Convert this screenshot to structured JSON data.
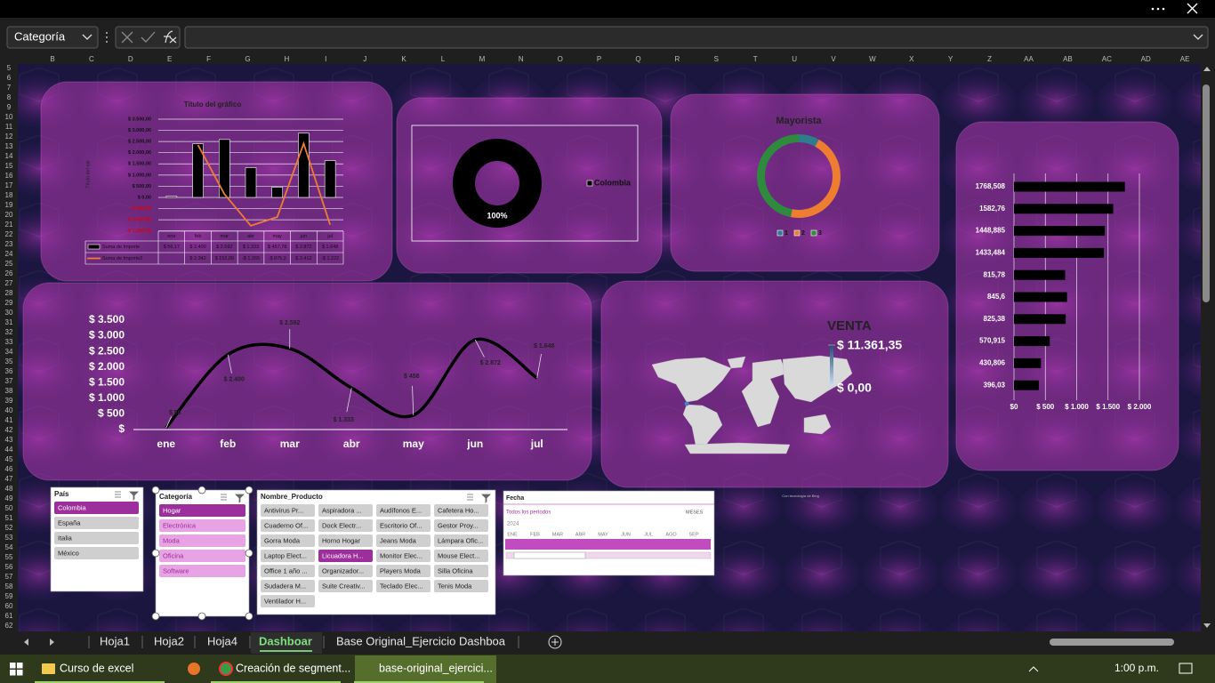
{
  "name_box": "Categoría",
  "columns": [
    "B",
    "C",
    "D",
    "E",
    "F",
    "G",
    "H",
    "I",
    "J",
    "K",
    "L",
    "M",
    "N",
    "O",
    "P",
    "Q",
    "R",
    "S",
    "T",
    "U",
    "V",
    "W",
    "X",
    "Y",
    "Z",
    "AA",
    "AB",
    "AC",
    "AD",
    "AE"
  ],
  "rows": [
    5,
    6,
    7,
    8,
    9,
    10,
    11,
    12,
    13,
    14,
    15,
    16,
    17,
    18,
    19,
    20,
    21,
    22,
    23,
    24,
    25,
    26,
    27,
    28,
    29,
    30,
    31,
    32,
    33,
    34,
    35,
    36,
    37,
    38,
    39,
    40,
    41,
    42,
    43,
    44,
    45,
    46,
    47,
    48,
    49,
    50,
    51,
    52,
    53,
    54,
    55,
    56,
    57,
    58,
    59,
    60,
    61,
    62
  ],
  "chart_data": [
    {
      "type": "combo",
      "title": "Título del gráfico",
      "y_label": "Título del eje",
      "categories": [
        "ene",
        "feb",
        "mar",
        "abr",
        "may",
        "jun",
        "jul"
      ],
      "series": [
        {
          "name": "Suma de Importe",
          "type": "bar",
          "color": "#000000",
          "values": [
            56.17,
            2400,
            2592,
            1333,
            457.78,
            2872,
            1648
          ],
          "value_labels": [
            "$ 56,17",
            "$ 2.400",
            "$ 2.592",
            "$ 1.333",
            "$ 457,78",
            "$ 2.872",
            "$ 1.648"
          ]
        },
        {
          "name": "Suma de Importe2",
          "type": "line",
          "color": "#ed7d31",
          "values": [
            null,
            2342,
            152.09,
            -1265,
            -875.2,
            2412,
            -1222
          ],
          "value_labels": [
            null,
            "$ 2.342",
            "$ 152,09",
            "-$ 1.265",
            "-$ 875,2",
            "$ 2.412",
            "-$ 1.222"
          ]
        }
      ],
      "ylim": [
        -1500,
        3500
      ],
      "yticks": [
        {
          "value": -1500,
          "label": "-$ 1.500,00"
        },
        {
          "value": -1000,
          "label": "-$ 1.000,00"
        },
        {
          "value": -500,
          "label": "-$ 500,00"
        },
        {
          "value": 0,
          "label": "$ 0,00"
        },
        {
          "value": 500,
          "label": "$ 500,00"
        },
        {
          "value": 1000,
          "label": "$ 1.000,00"
        },
        {
          "value": 1500,
          "label": "$ 1.500,00"
        },
        {
          "value": 2000,
          "label": "$ 2.000,00"
        },
        {
          "value": 2500,
          "label": "$ 2.500,00"
        },
        {
          "value": 3000,
          "label": "$ 3.000,00"
        },
        {
          "value": 3500,
          "label": "$ 3.500,00"
        }
      ],
      "negative_tick_color": "#e00000",
      "grid": true
    },
    {
      "type": "donut",
      "categories": [
        "Colombia"
      ],
      "values": [
        100
      ],
      "value_labels": [
        "100%"
      ],
      "colors": [
        "#000000"
      ]
    },
    {
      "type": "donut",
      "title": "Mayorista",
      "categories": [
        "1",
        "2",
        "3"
      ],
      "values": [
        8,
        45,
        47
      ],
      "colors": [
        "#2e7d8c",
        "#ed7d31",
        "#2e8b3e"
      ]
    },
    {
      "type": "line",
      "categories": [
        "ene",
        "feb",
        "mar",
        "abr",
        "may",
        "jun",
        "jul"
      ],
      "values": [
        56.17,
        2400,
        2592,
        1333,
        457.78,
        2872,
        1648
      ],
      "value_labels": [
        "$ 56",
        "$ 2.400",
        "$ 2.592",
        "$ 1.333",
        "$ 458",
        "$ 2.872",
        "$ 1.648"
      ],
      "ylim": [
        0,
        3500
      ],
      "yticks": [
        {
          "value": 0,
          "label": "$"
        },
        {
          "value": 500,
          "label": "$ 500"
        },
        {
          "value": 1000,
          "label": "$ 1.000"
        },
        {
          "value": 1500,
          "label": "$ 1.500"
        },
        {
          "value": 2000,
          "label": "$ 2.000"
        },
        {
          "value": 2500,
          "label": "$ 2.500"
        },
        {
          "value": 3000,
          "label": "$ 3.000"
        },
        {
          "value": 3500,
          "label": "$ 3.500"
        }
      ],
      "color": "#000000",
      "smooth": true
    },
    {
      "type": "map",
      "title": "VENTA",
      "legend_max": {
        "value": 11361.35,
        "label": "$ 11.361,35"
      },
      "legend_min": {
        "value": 0,
        "label": "$ 0,00"
      },
      "credit": "Con tecnología de Bing"
    },
    {
      "type": "hbar",
      "categories": [
        "1768,508",
        "1582,76",
        "1448,885",
        "1433,484",
        "815,78",
        "845,6",
        "825,38",
        "570,915",
        "430,806",
        "396,03"
      ],
      "values": [
        1768.508,
        1582.76,
        1448.885,
        1433.484,
        815.78,
        845.6,
        825.38,
        570.915,
        430.806,
        396.03
      ],
      "xlim": [
        0,
        2000
      ],
      "xticks": [
        {
          "value": 0,
          "label": "$0"
        },
        {
          "value": 500,
          "label": "$ 500"
        },
        {
          "value": 1000,
          "label": "$ 1.000"
        },
        {
          "value": 1500,
          "label": "$ 1.500"
        },
        {
          "value": 2000,
          "label": "$ 2.000"
        }
      ],
      "color": "#000000",
      "grid": true
    }
  ],
  "slicers": [
    {
      "title": "País",
      "items": [
        "Colombia",
        "España",
        "Italia",
        "México"
      ],
      "selected": [
        0
      ]
    },
    {
      "title": "Categoría",
      "items": [
        "Hogar",
        "Electrónica",
        "Moda",
        "Oficina",
        "Software"
      ],
      "selected": [
        0
      ]
    },
    {
      "title": "Nombre_Producto",
      "items": [
        "Antivirus Pr...",
        "Aspiradora ...",
        "Audífonos E...",
        "Cafetera Ho...",
        "Cuaderno Of...",
        "Dock Electr...",
        "Escritorio Of...",
        "Gestor Proy...",
        "Gorra Moda",
        "Horno Hogar",
        "Jeans Moda",
        "Lámpara Ofic...",
        "Laptop Elect...",
        "Licuadora H...",
        "Monitor Elec...",
        "Mouse Elect...",
        "Office 1 año ...",
        "Organizador...",
        "Players Moda",
        "Silla Oficina",
        "Sudadera M...",
        "Suite Creativ...",
        "Teclado Elec...",
        "Tenis Moda",
        "Ventilador H..."
      ],
      "selected": [
        13
      ]
    }
  ],
  "timeline": {
    "title": "Fecha",
    "range": "Todos los períodos",
    "level": "MESES",
    "year": "2024",
    "months": [
      "ENE",
      "FEB",
      "MAR",
      "ABR",
      "MAY",
      "JUN",
      "JUL",
      "AGO",
      "SEP"
    ]
  },
  "sheet_tabs": {
    "tabs": [
      "Hoja1",
      "Hoja2",
      "Hoja4",
      "Dashboar",
      "Base Original_Ejercicio Dashboa"
    ],
    "active": 3
  },
  "taskbar": {
    "items": [
      "Curso de excel",
      "Creación de segment...",
      "base-original_ejercici..."
    ],
    "active": 2,
    "clock": "1:00 p.m."
  }
}
